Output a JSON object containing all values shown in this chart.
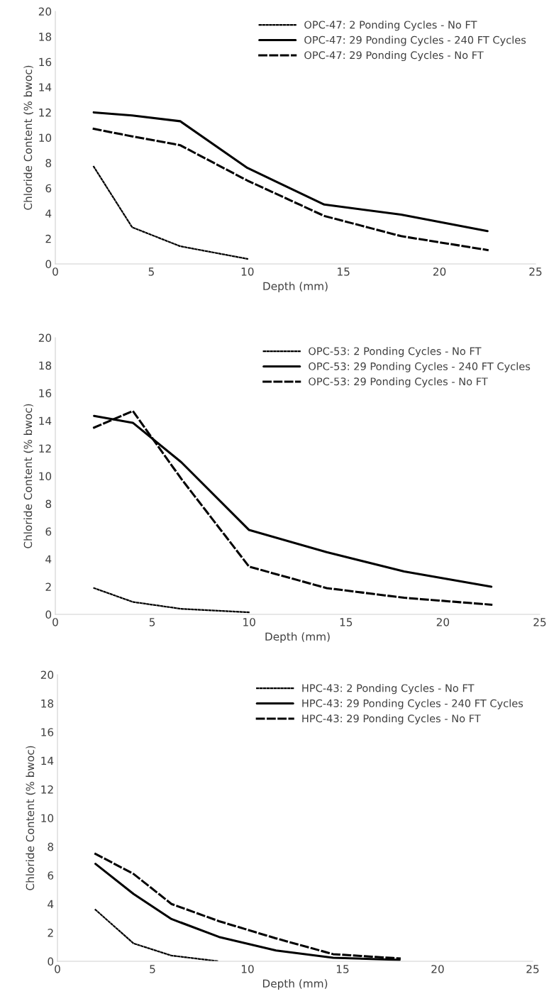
{
  "chart_data": [
    {
      "type": "line",
      "xlabel": "Depth (mm)",
      "ylabel": "Chloride Content (% bwoc)",
      "xlim": [
        0,
        25
      ],
      "xticks": [
        0,
        5,
        10,
        15,
        20,
        25
      ],
      "ylim": [
        0,
        20
      ],
      "yticks": [
        0,
        2,
        4,
        6,
        8,
        10,
        12,
        14,
        16,
        18,
        20
      ],
      "legend": "top right",
      "series": [
        {
          "name": "OPC-47: 2 Ponding Cycles - No FT",
          "color": "#000000",
          "line_style": "dotted",
          "x": [
            2,
            4,
            6.5,
            10
          ],
          "values": [
            7.7,
            2.9,
            1.4,
            0.4
          ]
        },
        {
          "name": "OPC-47: 29 Ponding Cycles - 240 FT Cycles",
          "color": "#000000",
          "line_style": "solid",
          "x": [
            2,
            4,
            6.5,
            10,
            14,
            18,
            22.5
          ],
          "values": [
            12.0,
            11.75,
            11.3,
            7.6,
            4.7,
            3.9,
            2.6
          ]
        },
        {
          "name": "OPC-47: 29 Ponding Cycles - No FT",
          "color": "#000000",
          "line_style": "dashed",
          "x": [
            2,
            4,
            6.5,
            10,
            14,
            18,
            22.5
          ],
          "values": [
            10.7,
            10.1,
            9.4,
            6.6,
            3.8,
            2.2,
            1.1
          ]
        }
      ]
    },
    {
      "type": "line",
      "xlabel": "Depth (mm)",
      "ylabel": "Chloride Content (% bwoc)",
      "xlim": [
        0,
        25
      ],
      "xticks": [
        0,
        5,
        10,
        15,
        20,
        25
      ],
      "ylim": [
        0,
        20
      ],
      "yticks": [
        0,
        2,
        4,
        6,
        8,
        10,
        12,
        14,
        16,
        18,
        20
      ],
      "legend": "top right",
      "series": [
        {
          "name": "OPC-53: 2 Ponding Cycles - No FT",
          "color": "#000000",
          "line_style": "dotted",
          "x": [
            2,
            4,
            6.5,
            10
          ],
          "values": [
            1.9,
            0.9,
            0.4,
            0.15
          ]
        },
        {
          "name": "OPC-53: 29 Ponding Cycles - 240 FT Cycles",
          "color": "#000000",
          "line_style": "solid",
          "x": [
            2,
            4,
            6.5,
            10,
            14,
            18,
            22.5
          ],
          "values": [
            14.35,
            13.85,
            11.0,
            6.1,
            4.5,
            3.1,
            2.0
          ]
        },
        {
          "name": "OPC-53: 29 Ponding Cycles - No FT",
          "color": "#000000",
          "line_style": "dashed",
          "x": [
            2,
            4,
            6.5,
            10,
            14,
            18,
            22.5
          ],
          "values": [
            13.5,
            14.7,
            9.8,
            3.45,
            1.9,
            1.2,
            0.7
          ]
        }
      ]
    },
    {
      "type": "line",
      "xlabel": "Depth (mm)",
      "ylabel": "Chloride Content (% bwoc)",
      "xlim": [
        0,
        25
      ],
      "xticks": [
        0,
        5,
        10,
        15,
        20,
        25
      ],
      "ylim": [
        0,
        20
      ],
      "yticks": [
        0,
        2,
        4,
        6,
        8,
        10,
        12,
        14,
        16,
        18,
        20
      ],
      "legend": "top right",
      "series": [
        {
          "name": "HPC-43: 2 Ponding Cycles - No FT",
          "color": "#000000",
          "line_style": "dotted",
          "x": [
            2,
            4,
            6,
            8.5
          ],
          "values": [
            3.6,
            1.25,
            0.4,
            0.0
          ]
        },
        {
          "name": "HPC-43: 29 Ponding Cycles - 240 FT Cycles",
          "color": "#000000",
          "line_style": "solid",
          "x": [
            2,
            4,
            6,
            8.5,
            11.5,
            14.5,
            18
          ],
          "values": [
            6.8,
            4.7,
            2.95,
            1.7,
            0.75,
            0.25,
            0.1
          ]
        },
        {
          "name": "HPC-43: 29 Ponding Cycles - No FT",
          "color": "#000000",
          "line_style": "dashed",
          "x": [
            2,
            4,
            6,
            8.5,
            11.5,
            14.5,
            18
          ],
          "values": [
            7.5,
            6.1,
            4.0,
            2.8,
            1.6,
            0.5,
            0.2
          ]
        }
      ]
    }
  ]
}
